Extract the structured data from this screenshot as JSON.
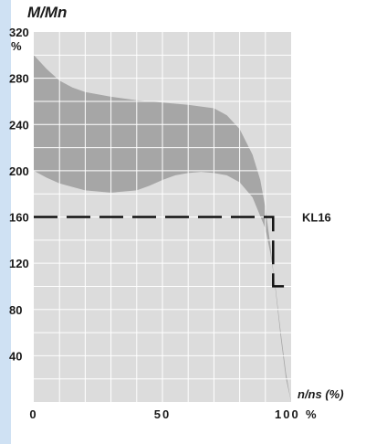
{
  "chart_data": {
    "type": "area",
    "ylabel": "M/Mn",
    "yunit": "%",
    "xlabel": "n/ns (%)",
    "xunit": "%",
    "xlim": [
      0,
      100
    ],
    "ylim": [
      0,
      320
    ],
    "xticks": [
      0,
      50,
      100
    ],
    "yticks": [
      40,
      80,
      120,
      160,
      200,
      240,
      280,
      320
    ],
    "grid": true,
    "colors": {
      "band": "#a6a6a6",
      "grid": "#ffffff",
      "plot_bg": "#dcdcdc",
      "line": "#111111",
      "side_strip": "#cfe1f3"
    },
    "series": [
      {
        "name": "",
        "kind": "band-upper",
        "x": [
          0,
          5,
          10,
          15,
          20,
          30,
          40,
          50,
          60,
          70,
          75,
          80,
          85,
          88,
          90,
          92,
          94,
          96,
          98,
          100
        ],
        "values": [
          300,
          288,
          278,
          272,
          268,
          264,
          261,
          259,
          257,
          254,
          248,
          236,
          214,
          192,
          168,
          135,
          95,
          55,
          20,
          0
        ]
      },
      {
        "name": "",
        "kind": "band-lower",
        "x": [
          0,
          5,
          10,
          15,
          20,
          30,
          40,
          45,
          50,
          55,
          60,
          65,
          70,
          75,
          80,
          85,
          90,
          92,
          94,
          96,
          98,
          100
        ],
        "values": [
          200,
          194,
          189,
          186,
          183,
          181,
          183,
          187,
          192,
          196,
          198,
          199,
          198,
          196,
          190,
          177,
          150,
          128,
          98,
          60,
          25,
          0
        ]
      },
      {
        "name": "KL16",
        "kind": "dashed-line",
        "x": [
          0,
          91,
          93,
          93,
          100
        ],
        "values": [
          160,
          160,
          160,
          100,
          100
        ]
      }
    ],
    "annotations": [
      {
        "text": "KL16",
        "x": 105,
        "y": 160
      }
    ]
  }
}
